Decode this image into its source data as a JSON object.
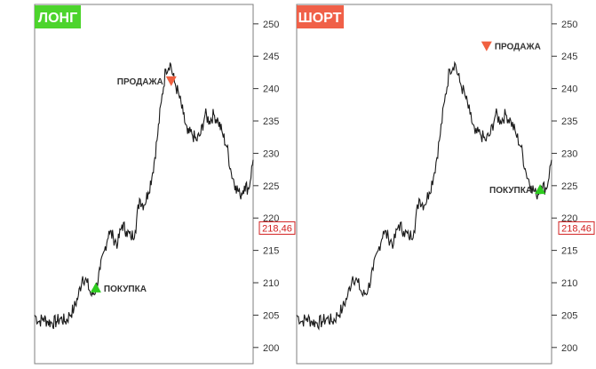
{
  "chart_data": [
    {
      "type": "line",
      "title": "ЛОНГ",
      "title_color": "#4cd42c",
      "ylim": [
        197.5,
        253
      ],
      "yticks": [
        200,
        205,
        210,
        215,
        220,
        225,
        230,
        235,
        240,
        245,
        250
      ],
      "ytick_labels": [
        "200",
        "205",
        "210",
        "215",
        "220",
        "225",
        "230",
        "235",
        "240",
        "245",
        "250"
      ],
      "axis_side": "right",
      "grid": false,
      "price_tag": {
        "label": "218,46",
        "value": 218.46,
        "color": "#d22020"
      },
      "annotations": [
        {
          "label": "ПОКУПКА",
          "kind": "buy",
          "marker": "triangle-up",
          "color": "#2ecc1f",
          "x": 0.28,
          "y": 209.2,
          "label_side": "right"
        },
        {
          "label": "ПРОДАЖА",
          "kind": "sell",
          "marker": "triangle-down",
          "color": "#f06040",
          "x": 0.625,
          "y": 241.2,
          "label_side": "left"
        }
      ]
    },
    {
      "type": "line",
      "title": "ШОРТ",
      "title_color": "#f06048",
      "ylim": [
        197.5,
        253
      ],
      "yticks": [
        200,
        205,
        210,
        215,
        220,
        225,
        230,
        235,
        240,
        245,
        250
      ],
      "ytick_labels": [
        "200",
        "205",
        "210",
        "215",
        "220",
        "225",
        "230",
        "235",
        "240",
        "245",
        "250"
      ],
      "axis_side": "right",
      "grid": false,
      "price_tag": {
        "label": "218,46",
        "value": 218.46,
        "color": "#d22020"
      },
      "annotations": [
        {
          "label": "ПРОДАЖА",
          "kind": "sell",
          "marker": "triangle-down",
          "color": "#f06040",
          "x": 0.745,
          "y": 246.6,
          "label_side": "right"
        },
        {
          "label": "ПОКУПКА",
          "kind": "buy",
          "marker": "triangle-up",
          "color": "#2ecc1f",
          "x": 0.955,
          "y": 224.4,
          "label_side": "left"
        }
      ]
    }
  ],
  "price_series": {
    "x": [
      0,
      0.02,
      0.04,
      0.06,
      0.08,
      0.1,
      0.12,
      0.14,
      0.16,
      0.18,
      0.2,
      0.22,
      0.24,
      0.26,
      0.28,
      0.3,
      0.32,
      0.34,
      0.36,
      0.38,
      0.4,
      0.42,
      0.44,
      0.46,
      0.48,
      0.5,
      0.52,
      0.54,
      0.56,
      0.58,
      0.6,
      0.62,
      0.64,
      0.66,
      0.68,
      0.7,
      0.72,
      0.74,
      0.76,
      0.78,
      0.8,
      0.82,
      0.84,
      0.86,
      0.88,
      0.9,
      0.92,
      0.94,
      0.96,
      0.98,
      1.0
    ],
    "y": [
      205,
      204,
      204.5,
      204,
      203.8,
      204,
      204.5,
      204,
      205,
      206,
      208,
      211,
      210,
      208,
      209,
      212,
      215,
      218,
      217,
      216,
      219,
      218,
      217,
      218,
      223,
      222,
      224,
      227,
      232,
      238,
      243,
      244,
      241,
      239,
      236,
      233,
      233,
      232,
      233,
      236,
      235,
      236,
      235,
      233,
      231,
      227,
      225,
      223.5,
      225,
      224.5,
      229
    ]
  },
  "icons": [
    "triangle-up-icon",
    "triangle-down-icon"
  ]
}
